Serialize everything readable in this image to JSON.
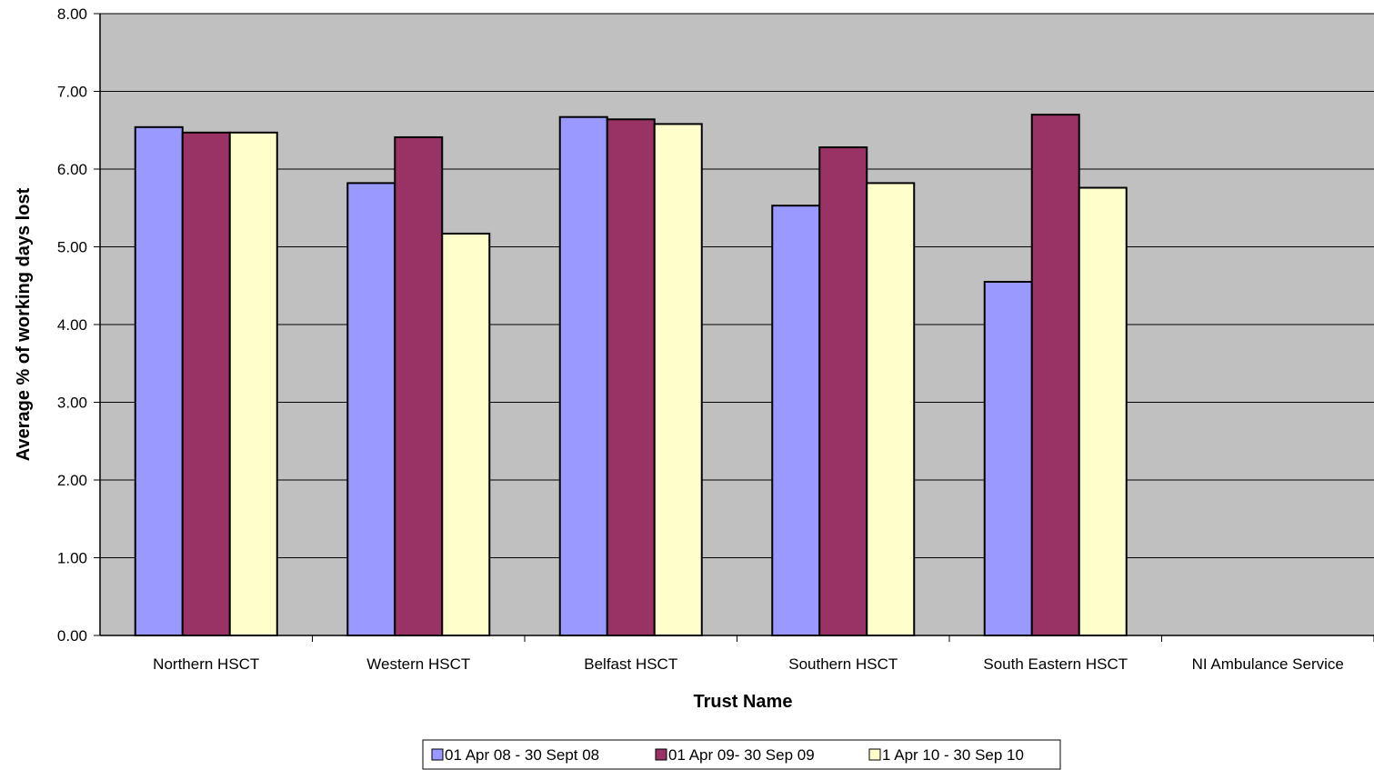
{
  "chart_data": {
    "type": "bar",
    "title": "",
    "xlabel": "Trust Name",
    "ylabel": "Average % of working days lost",
    "ylim": [
      0,
      8
    ],
    "yticks": [
      "0.00",
      "1.00",
      "2.00",
      "3.00",
      "4.00",
      "5.00",
      "6.00",
      "7.00",
      "8.00"
    ],
    "grid": true,
    "legend_position": "bottom",
    "plot_background": "#c0c0c0",
    "categories": [
      "Northern HSCT",
      "Western HSCT",
      "Belfast HSCT",
      "Southern HSCT",
      "South Eastern HSCT",
      "NI Ambulance Service"
    ],
    "series": [
      {
        "name": "01 Apr 08 - 30 Sept 08",
        "color": "#9999ff",
        "values": [
          6.54,
          5.82,
          6.67,
          5.53,
          4.55,
          null
        ]
      },
      {
        "name": "01 Apr 09- 30 Sep 09",
        "color": "#993366",
        "values": [
          6.47,
          6.41,
          6.64,
          6.28,
          6.7,
          null
        ]
      },
      {
        "name": "1 Apr 10 - 30 Sep 10",
        "color": "#ffffcc",
        "values": [
          6.47,
          5.17,
          6.58,
          5.82,
          5.76,
          null
        ]
      }
    ]
  }
}
